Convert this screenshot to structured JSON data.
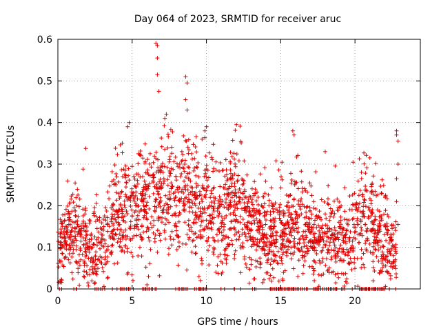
{
  "chart_data": {
    "type": "scatter",
    "title": "Day 064 of 2023, SRMTID for receiver aruc",
    "xlabel": "GPS time / hours",
    "ylabel": "SRMTID / TECUs",
    "xlim": [
      0,
      24.4
    ],
    "ylim": [
      0,
      0.6
    ],
    "xticks": [
      0,
      5,
      10,
      15,
      20
    ],
    "yticks": [
      0,
      0.1,
      0.2,
      0.3,
      0.4,
      0.5,
      0.6
    ],
    "xtick_labels": [
      "0",
      "5",
      "10",
      "15",
      "20"
    ],
    "ytick_labels": [
      "0",
      "0.1",
      "0.2",
      "0.3",
      "0.4",
      "0.5",
      "0.6"
    ],
    "grid": true,
    "marker": "+",
    "series_color": "#e00000",
    "profile": {
      "x": [
        0,
        0.5,
        1,
        1.5,
        2,
        2.5,
        3,
        3.5,
        4,
        4.5,
        5,
        5.5,
        6,
        6.5,
        7,
        7.5,
        8,
        8.5,
        9,
        9.5,
        10,
        10.5,
        11,
        11.5,
        12,
        12.5,
        13,
        13.5,
        14,
        14.5,
        15,
        15.5,
        16,
        16.5,
        17,
        17.5,
        18,
        18.5,
        19,
        19.5,
        20,
        20.5,
        21,
        21.5,
        22,
        22.5,
        22.8
      ],
      "y": [
        0.08,
        0.12,
        0.13,
        0.11,
        0.1,
        0.09,
        0.11,
        0.15,
        0.18,
        0.2,
        0.18,
        0.22,
        0.21,
        0.22,
        0.24,
        0.22,
        0.21,
        0.24,
        0.21,
        0.2,
        0.2,
        0.18,
        0.17,
        0.19,
        0.22,
        0.2,
        0.16,
        0.13,
        0.14,
        0.13,
        0.14,
        0.14,
        0.18,
        0.15,
        0.12,
        0.11,
        0.12,
        0.12,
        0.11,
        0.11,
        0.15,
        0.18,
        0.15,
        0.13,
        0.12,
        0.09,
        0.07
      ]
    },
    "outliers": [
      {
        "x": 6.6,
        "y": 0.59
      },
      {
        "x": 6.7,
        "y": 0.585
      },
      {
        "x": 6.7,
        "y": 0.555
      },
      {
        "x": 6.7,
        "y": 0.515
      },
      {
        "x": 6.8,
        "y": 0.475
      },
      {
        "x": 8.6,
        "y": 0.51
      },
      {
        "x": 8.7,
        "y": 0.495
      },
      {
        "x": 8.6,
        "y": 0.455
      },
      {
        "x": 8.7,
        "y": 0.43
      },
      {
        "x": 7.3,
        "y": 0.42
      },
      {
        "x": 7.2,
        "y": 0.41
      },
      {
        "x": 4.8,
        "y": 0.4
      },
      {
        "x": 4.7,
        "y": 0.39
      },
      {
        "x": 10.0,
        "y": 0.39
      },
      {
        "x": 9.9,
        "y": 0.38
      },
      {
        "x": 22.8,
        "y": 0.38
      },
      {
        "x": 22.8,
        "y": 0.37
      },
      {
        "x": 22.9,
        "y": 0.355
      },
      {
        "x": 15.9,
        "y": 0.37
      },
      {
        "x": 18.0,
        "y": 0.33
      },
      {
        "x": 21.0,
        "y": 0.315
      },
      {
        "x": 22.9,
        "y": 0.3
      },
      {
        "x": 22.8,
        "y": 0.265
      },
      {
        "x": 22.8,
        "y": 0.21
      },
      {
        "x": 22.9,
        "y": 0.155
      },
      {
        "x": 6.0,
        "y": 0.01
      },
      {
        "x": 6.1,
        "y": 0.03
      },
      {
        "x": 9.5,
        "y": 0.03
      },
      {
        "x": 9.6,
        "y": 0.02
      },
      {
        "x": 9.7,
        "y": 0.06
      }
    ]
  }
}
